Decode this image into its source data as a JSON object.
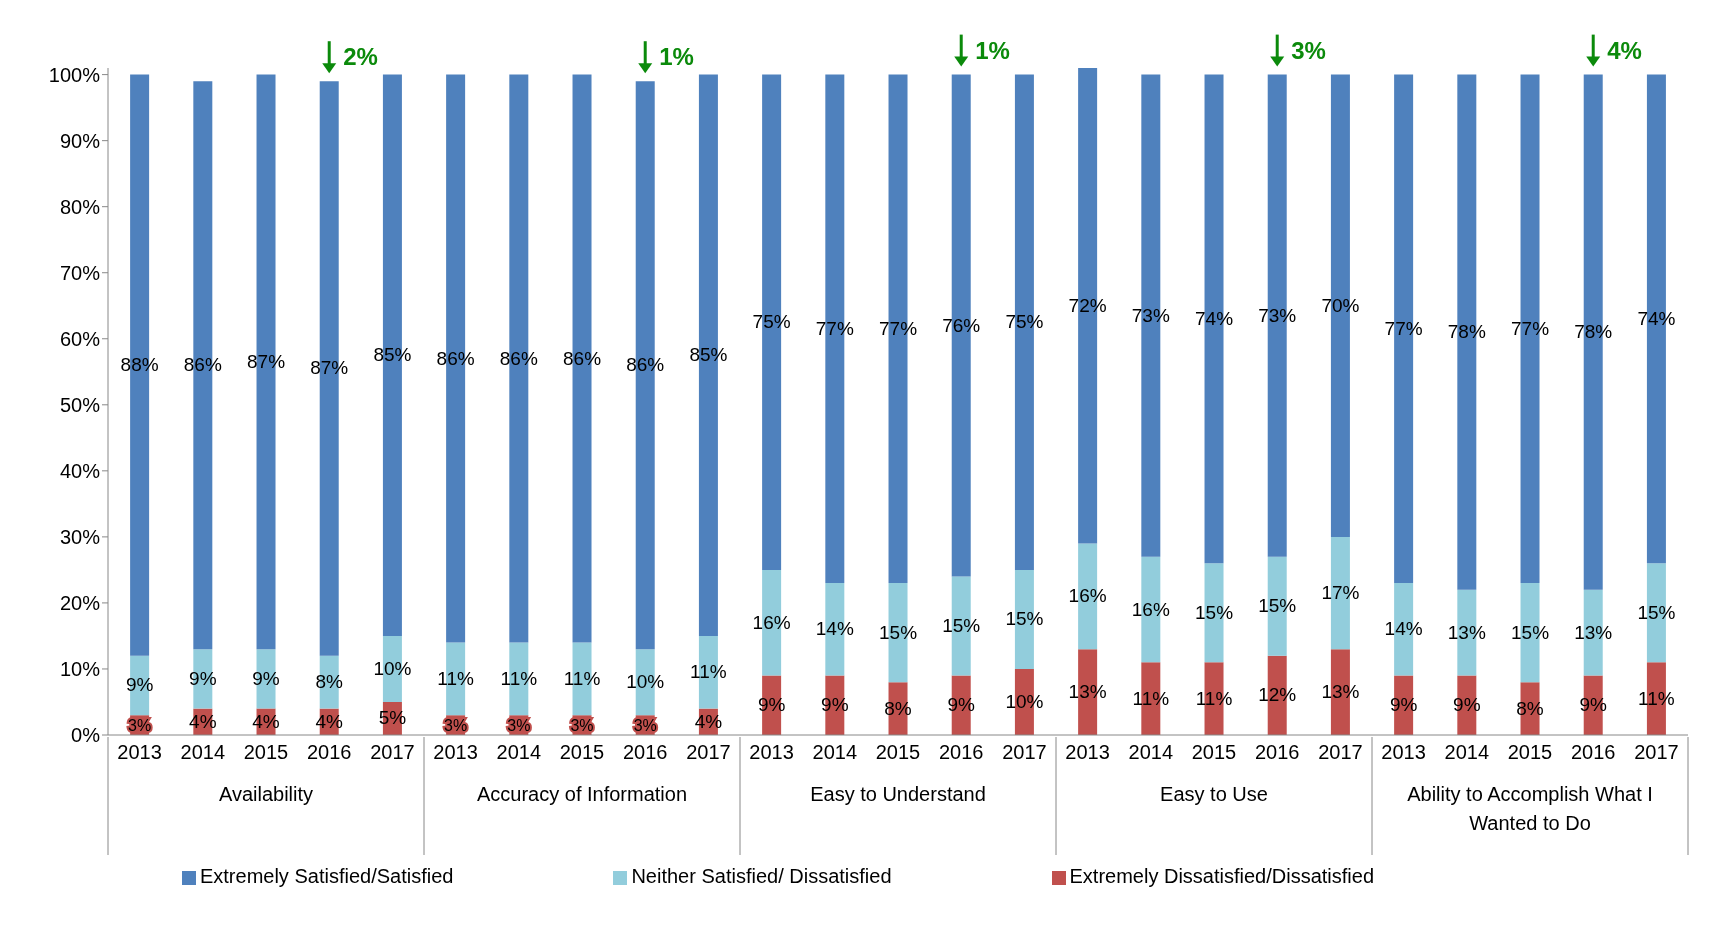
{
  "chart_data": {
    "type": "bar",
    "stacked": true,
    "categories": [
      "2013",
      "2014",
      "2015",
      "2016",
      "2017",
      "2013",
      "2014",
      "2015",
      "2016",
      "2017",
      "2013",
      "2014",
      "2015",
      "2016",
      "2017",
      "2013",
      "2014",
      "2015",
      "2016",
      "2017",
      "2013",
      "2014",
      "2015",
      "2016",
      "2017"
    ],
    "series": [
      {
        "name": "Extremely Dissatisfied/Dissatisfied",
        "color": "#c0504d",
        "values": [
          3,
          4,
          4,
          4,
          5,
          3,
          3,
          3,
          3,
          4,
          9,
          9,
          8,
          9,
          10,
          13,
          11,
          11,
          12,
          13,
          9,
          9,
          8,
          9,
          11
        ],
        "value_labels": [
          "3%",
          "4%",
          "4%",
          "4%",
          "5%",
          "3%",
          "3%",
          "3%",
          "3%",
          "4%",
          "9%",
          "9%",
          "8%",
          "9%",
          "10%",
          "13%",
          "11%",
          "11%",
          "12%",
          "13%",
          "9%",
          "9%",
          "8%",
          "9%",
          "11%"
        ]
      },
      {
        "name": "Neither Satisfied/ Dissatisfied",
        "color": "#92cddc",
        "values": [
          9,
          9,
          9,
          8,
          10,
          11,
          11,
          11,
          10,
          11,
          16,
          14,
          15,
          15,
          15,
          16,
          16,
          15,
          15,
          17,
          14,
          13,
          15,
          13,
          15
        ],
        "value_labels": [
          "9%",
          "9%",
          "9%",
          "8%",
          "10%",
          "11%",
          "11%",
          "11%",
          "10%",
          "11%",
          "16%",
          "14%",
          "15%",
          "15%",
          "15%",
          "16%",
          "16%",
          "15%",
          "15%",
          "17%",
          "14%",
          "13%",
          "15%",
          "13%",
          "15%"
        ]
      },
      {
        "name": "Extremely Satisfied/Satisfied",
        "color": "#4f81bd",
        "values": [
          88,
          86,
          87,
          87,
          85,
          86,
          86,
          86,
          86,
          85,
          75,
          77,
          77,
          76,
          75,
          72,
          73,
          74,
          73,
          70,
          77,
          78,
          77,
          78,
          74
        ],
        "value_labels": [
          "88%",
          "86%",
          "87%",
          "87%",
          "85%",
          "86%",
          "86%",
          "86%",
          "86%",
          "85%",
          "75%",
          "77%",
          "77%",
          "76%",
          "75%",
          "72%",
          "73%",
          "74%",
          "73%",
          "70%",
          "77%",
          "78%",
          "77%",
          "78%",
          "74%"
        ]
      }
    ],
    "ylim": [
      0,
      101
    ],
    "yticks": [
      {
        "value": 0,
        "label": "0%"
      },
      {
        "value": 10,
        "label": "10%"
      },
      {
        "value": 20,
        "label": "20%"
      },
      {
        "value": 30,
        "label": "30%"
      },
      {
        "value": 40,
        "label": "40%"
      },
      {
        "value": 50,
        "label": "50%"
      },
      {
        "value": 60,
        "label": "60%"
      },
      {
        "value": 70,
        "label": "70%"
      },
      {
        "value": 80,
        "label": "80%"
      },
      {
        "value": 90,
        "label": "90%"
      },
      {
        "value": 100,
        "label": "100%"
      }
    ],
    "annotations": [
      "Availability",
      "Accuracy of Information",
      "Easy to Understand",
      "Easy to Use",
      "Ability to Accomplish What I Wanted to Do",
      "2%",
      "1%",
      "1%",
      "3%",
      "4%"
    ],
    "grid": false,
    "legend": "bottom"
  }
}
